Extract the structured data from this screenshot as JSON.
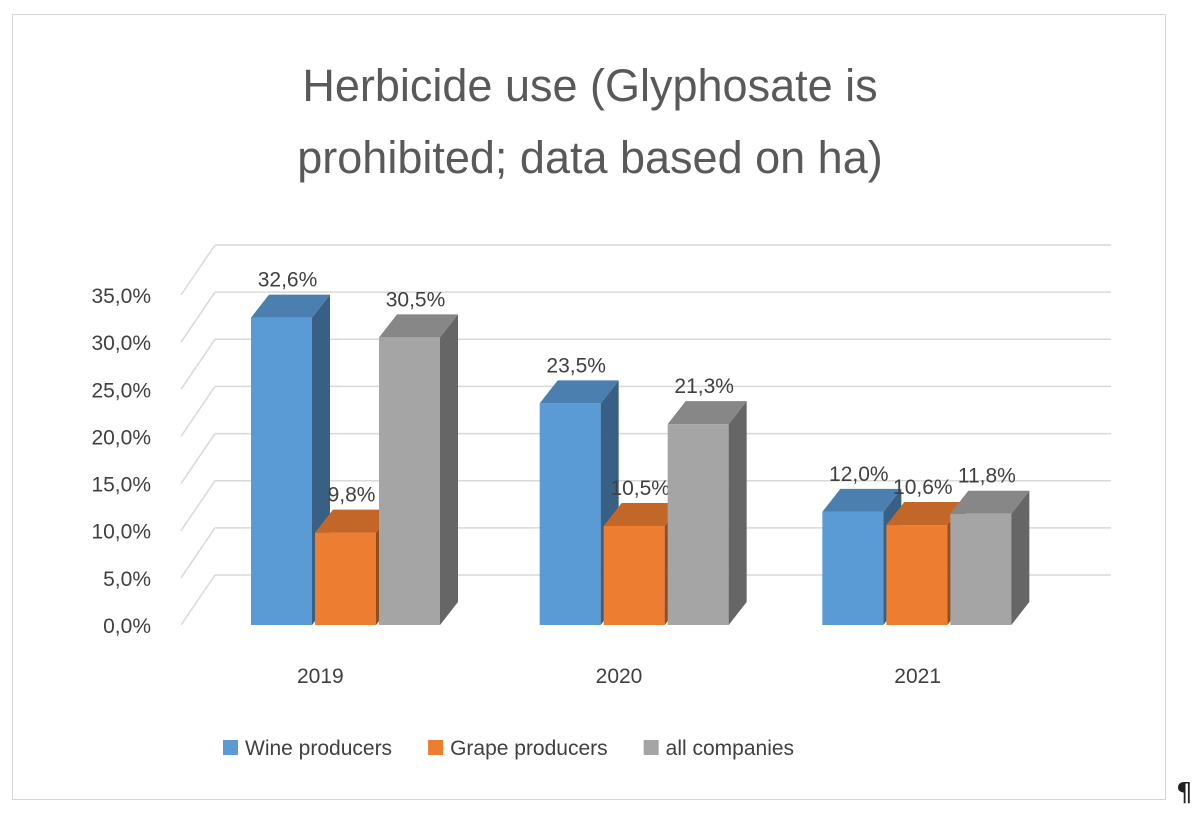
{
  "chart_data": {
    "type": "bar",
    "title": "Herbicide use (Glyphosate is prohibited; data based on ha)",
    "title_lines": [
      "Herbicide use (Glyphosate is",
      "prohibited; data based on ha)"
    ],
    "categories": [
      "2019",
      "2020",
      "2021"
    ],
    "series": [
      {
        "name": "Wine producers",
        "values": [
          32.6,
          23.5,
          12.0
        ],
        "labels": [
          "32,6%",
          "23,5%",
          "12,0%"
        ],
        "color": "#5b9bd5"
      },
      {
        "name": "Grape producers",
        "values": [
          9.8,
          10.5,
          10.6
        ],
        "labels": [
          "9,8%",
          "10,5%",
          "10,6%"
        ],
        "color": "#ed7d31"
      },
      {
        "name": "all companies",
        "values": [
          30.5,
          21.3,
          11.8
        ],
        "labels": [
          "30,5%",
          "21,3%",
          "11,8%"
        ],
        "color": "#a5a5a5"
      }
    ],
    "ylim": [
      0,
      35
    ],
    "yticks": [
      0,
      5,
      10,
      15,
      20,
      25,
      30,
      35
    ],
    "ytick_labels": [
      "0,0%",
      "5,0%",
      "10,0%",
      "15,0%",
      "20,0%",
      "25,0%",
      "30,0%",
      "35,0%"
    ],
    "grid": true,
    "style": "3d-clustered-column",
    "legend_position": "bottom",
    "xlabel": "",
    "ylabel": ""
  },
  "page": {
    "pilcrow": "¶"
  }
}
